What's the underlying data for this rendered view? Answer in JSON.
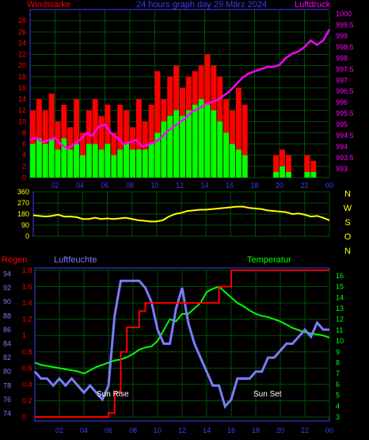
{
  "header": {
    "left_label": "Windstärke",
    "title": "24 hours graph day  29 März 2024",
    "right_label": "Luftdruck"
  },
  "direction_labels": [
    "N",
    "W",
    "S",
    "O",
    "N"
  ],
  "lower_header": {
    "regen": "Regen",
    "feuchte": "Luftfeuchte",
    "temp": "Temperatur"
  },
  "annotations": {
    "sunrise": "Sun Rise",
    "sunset": "Sun Set"
  },
  "colors": {
    "wind_gust": "#ff0000",
    "wind_speed": "#00ff00",
    "pressure": "#ff00ff",
    "direction": "#ffff00",
    "rain": "#ff0000",
    "humidity": "#7b7bff",
    "temperature": "#00ff00",
    "grid": "#005000",
    "frame": "#3c3cff",
    "axis_left": "#ff0000",
    "axis_right": "#ff00ff",
    "axis_temp": "#00ff00"
  },
  "chart_data": [
    {
      "type": "bar",
      "title": "24 hours graph day  29 März 2024",
      "x_ticks": [
        "02",
        "04",
        "06",
        "08",
        "10",
        "12",
        "14",
        "16",
        "18",
        "20",
        "22",
        "00"
      ],
      "y_left_label": "Windstärke",
      "y_left_ticks": [
        0,
        2,
        4,
        6,
        8,
        10,
        12,
        14,
        16,
        18,
        20,
        22,
        24,
        26,
        28
      ],
      "ylim_left": [
        0,
        30
      ],
      "y_right_label": "Luftdruck",
      "y_right_ticks": [
        993,
        993.5,
        994,
        994.5,
        995,
        995.5,
        996,
        996.5,
        997,
        997.5,
        998,
        998.5,
        999,
        999.5,
        1000
      ],
      "ylim_right": [
        992.6,
        1000.2
      ],
      "x_hours": [
        0,
        0.5,
        1,
        1.5,
        2,
        2.5,
        3,
        3.5,
        4,
        4.5,
        5,
        5.5,
        6,
        6.5,
        7,
        7.5,
        8,
        8.5,
        9,
        9.5,
        10,
        10.5,
        11,
        11.5,
        12,
        12.5,
        13,
        13.5,
        14,
        14.5,
        15,
        15.5,
        16,
        16.5,
        17,
        17.5,
        18,
        18.5,
        19,
        19.5,
        20,
        20.5,
        21,
        21.5,
        22,
        22.5,
        23,
        23.5,
        24
      ],
      "series": [
        {
          "name": "Windstärke",
          "gust": [
            12,
            14,
            12,
            15,
            10,
            13,
            9,
            14,
            8,
            12,
            14,
            11,
            13,
            8,
            13,
            12,
            9,
            14,
            10,
            13,
            19,
            14,
            18,
            20,
            16,
            18,
            19,
            20,
            22,
            20,
            18,
            14,
            12,
            16,
            13,
            0,
            0,
            0,
            0,
            4,
            5,
            4,
            0,
            0,
            4,
            3,
            0,
            0,
            0
          ],
          "speed": [
            6,
            7,
            6,
            7,
            5,
            7,
            5,
            6,
            4,
            6,
            6,
            5,
            6,
            4,
            5,
            6,
            5,
            5,
            5,
            6,
            8,
            10,
            11,
            12,
            11,
            12,
            13,
            14,
            13,
            12,
            10,
            8,
            6,
            5,
            4,
            0,
            0,
            0,
            0,
            1,
            2,
            1,
            0,
            0,
            1,
            1,
            0,
            0,
            0
          ]
        },
        {
          "name": "Luftdruck",
          "values": [
            994.3,
            994.4,
            994.2,
            994.3,
            994.4,
            994.1,
            993.9,
            994.1,
            994.3,
            994.6,
            994.5,
            994.9,
            995.0,
            994.6,
            994.4,
            994.1,
            994.2,
            994.3,
            994.0,
            994.1,
            994.2,
            994.4,
            994.7,
            994.9,
            995.1,
            995.3,
            995.6,
            995.7,
            995.9,
            996.0,
            996.1,
            996.3,
            996.5,
            996.8,
            997.1,
            997.3,
            997.4,
            997.5,
            997.6,
            997.6,
            997.7,
            998.0,
            998.2,
            998.3,
            998.5,
            998.8,
            998.6,
            998.8,
            999.3
          ]
        }
      ]
    },
    {
      "type": "line",
      "title": "",
      "y_ticks": [
        0,
        90,
        180,
        270,
        360
      ],
      "ylim": [
        0,
        360
      ],
      "direction_labels": [
        "N",
        "W",
        "S",
        "O",
        "N"
      ],
      "x_hours": [
        0,
        0.5,
        1,
        1.5,
        2,
        2.5,
        3,
        3.5,
        4,
        4.5,
        5,
        5.5,
        6,
        6.5,
        7,
        7.5,
        8,
        8.5,
        9,
        9.5,
        10,
        10.5,
        11,
        11.5,
        12,
        12.5,
        13,
        13.5,
        14,
        14.5,
        15,
        15.5,
        16,
        16.5,
        17,
        17.5,
        18,
        18.5,
        19,
        19.5,
        20,
        20.5,
        21,
        21.5,
        22,
        22.5,
        23,
        23.5,
        24
      ],
      "series": [
        {
          "name": "Wind direction",
          "values": [
            170,
            165,
            160,
            165,
            175,
            160,
            160,
            155,
            140,
            140,
            150,
            140,
            145,
            140,
            145,
            150,
            140,
            130,
            125,
            120,
            120,
            130,
            160,
            180,
            190,
            205,
            210,
            215,
            215,
            220,
            225,
            230,
            235,
            240,
            240,
            230,
            225,
            220,
            210,
            205,
            200,
            195,
            180,
            185,
            175,
            160,
            165,
            150,
            130
          ]
        }
      ]
    },
    {
      "type": "line",
      "title": "",
      "y_left_label": "Regen",
      "y_left_ticks": [
        0,
        0.2,
        0.4,
        0.6,
        0.8,
        1,
        1.2,
        1.4,
        1.6,
        1.8
      ],
      "y_humidity_label": "Luftfeuchte",
      "y_humidity_ticks": [
        74,
        76,
        78,
        80,
        82,
        84,
        86,
        88,
        90,
        92,
        94
      ],
      "y_right_label": "Temperatur",
      "y_right_ticks": [
        3,
        4,
        5,
        6,
        7,
        8,
        9,
        10,
        11,
        12,
        13,
        14,
        15,
        16
      ],
      "annotations": [
        "Sun Rise",
        "Sun Set"
      ],
      "x_hours": [
        0,
        0.5,
        1,
        1.5,
        2,
        2.5,
        3,
        3.5,
        4,
        4.5,
        5,
        5.5,
        6,
        6.5,
        7,
        7.5,
        8,
        8.5,
        9,
        9.5,
        10,
        10.5,
        11,
        11.5,
        12,
        12.5,
        13,
        13.5,
        14,
        14.5,
        15,
        15.5,
        16,
        16.5,
        17,
        17.5,
        18,
        18.5,
        19,
        19.5,
        20,
        20.5,
        21,
        21.5,
        22,
        22.5,
        23,
        23.5,
        24
      ],
      "series": [
        {
          "name": "Regen",
          "values": [
            0,
            0,
            0,
            0,
            0,
            0,
            0,
            0,
            0,
            0,
            0,
            0,
            0.05,
            0.3,
            0.8,
            1.1,
            1.1,
            1.3,
            1.4,
            1.4,
            1.4,
            1.4,
            1.4,
            1.4,
            1.4,
            1.4,
            1.4,
            1.4,
            1.4,
            1.4,
            1.6,
            1.6,
            1.8,
            1.8,
            1.8,
            1.8,
            1.8,
            1.8,
            1.8,
            1.8,
            1.8,
            1.8,
            1.8,
            1.8,
            1.8,
            1.8,
            1.8,
            1.8,
            1.8
          ]
        },
        {
          "name": "Luftfeuchte",
          "values": [
            80,
            79,
            79,
            78,
            79,
            78,
            79,
            78,
            77,
            78,
            77,
            76,
            78,
            88,
            93,
            93,
            93,
            93,
            92,
            90,
            86,
            84,
            84,
            89,
            92,
            87,
            84,
            82,
            80,
            78,
            78,
            75,
            76,
            79,
            79,
            79,
            80,
            80,
            82,
            82,
            83,
            84,
            84,
            85,
            86,
            85,
            87,
            86,
            86
          ]
        },
        {
          "name": "Temperatur",
          "values": [
            8.0,
            7.8,
            7.7,
            7.6,
            7.5,
            7.4,
            7.3,
            7.2,
            7.0,
            7.3,
            7.6,
            7.8,
            8.0,
            8.2,
            8.3,
            8.5,
            8.8,
            9.2,
            9.4,
            9.5,
            10.0,
            11.0,
            12.0,
            11.8,
            12.5,
            12.5,
            13.0,
            13.5,
            14.5,
            14.8,
            15.0,
            14.5,
            14.0,
            13.5,
            13.2,
            12.8,
            12.5,
            12.3,
            12.2,
            12.0,
            11.8,
            11.5,
            11.2,
            11.0,
            10.8,
            10.7,
            10.6,
            10.5,
            10.3
          ]
        }
      ]
    }
  ]
}
